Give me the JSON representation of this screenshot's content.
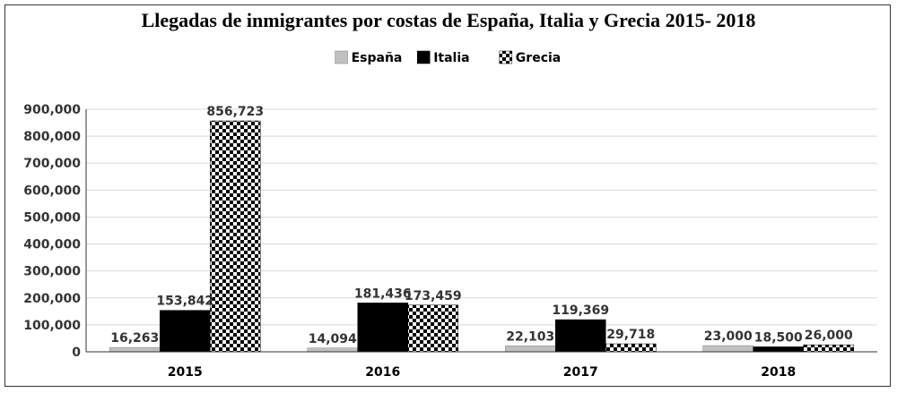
{
  "chart_data": {
    "type": "bar",
    "title": "Llegadas de inmigrantes por costas de España, Italia y Grecia 2015- 2018",
    "xlabel": "",
    "ylabel": "",
    "categories": [
      "2015",
      "2016",
      "2017",
      "2018"
    ],
    "series": [
      {
        "name": "España",
        "values": [
          16263,
          14094,
          22103,
          23000
        ],
        "labels": [
          "16,263",
          "14,094",
          "22,103",
          "23,000"
        ],
        "color": "#c0c0c0",
        "pattern": "solid-gray"
      },
      {
        "name": "Italia",
        "values": [
          153842,
          181436,
          119369,
          18500
        ],
        "labels": [
          "153,842",
          "181,436",
          "119,369",
          "18,500"
        ],
        "color": "#000000",
        "pattern": "solid-black"
      },
      {
        "name": "Grecia",
        "values": [
          856723,
          173459,
          29718,
          26000
        ],
        "labels": [
          "856,723",
          "173,459",
          "29,718",
          "26,000"
        ],
        "color": "#000000",
        "pattern": "checker"
      }
    ],
    "ylim": [
      0,
      900000
    ],
    "yticks": [
      0,
      100000,
      200000,
      300000,
      400000,
      500000,
      600000,
      700000,
      800000,
      900000
    ],
    "ytick_labels": [
      "0",
      "100,000",
      "200,000",
      "300,000",
      "400,000",
      "500,000",
      "600,000",
      "700,000",
      "800,000",
      "900,000"
    ],
    "grid": true,
    "legend_position": "top-center"
  }
}
